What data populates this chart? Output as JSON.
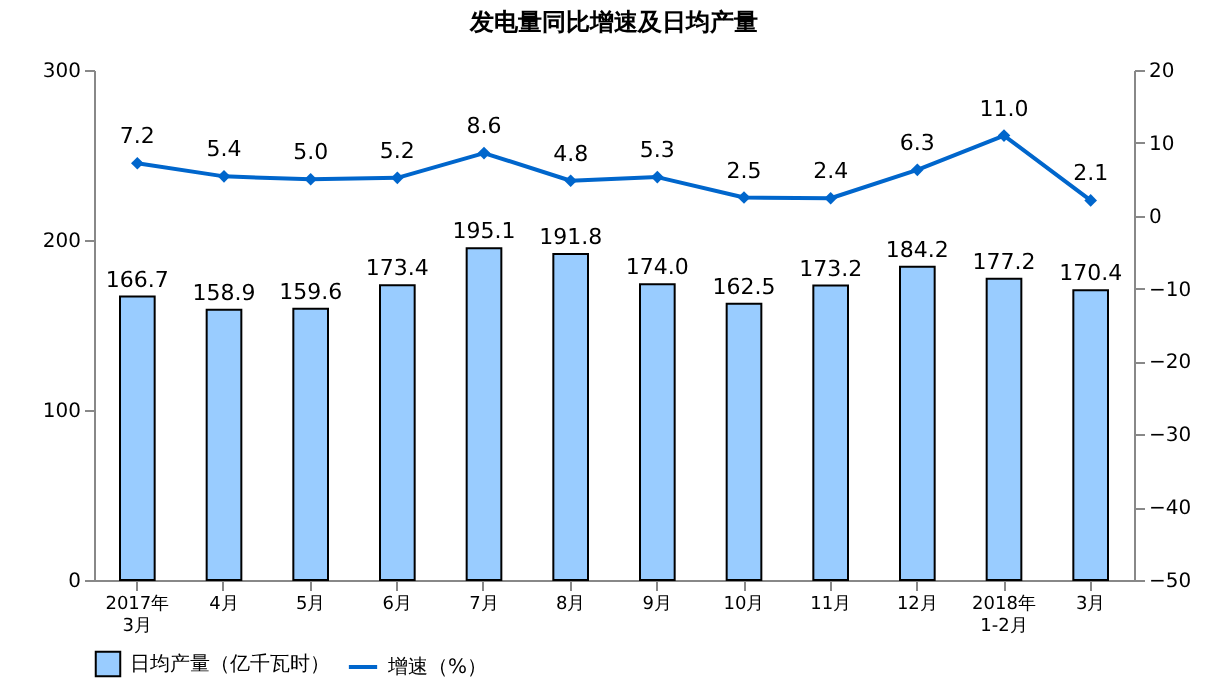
{
  "chart_data": {
    "type": "bar",
    "title": "发电量同比增速及日均产量",
    "categories": [
      "2017年\n3月",
      "4月",
      "5月",
      "6月",
      "7月",
      "8月",
      "9月",
      "10月",
      "11月",
      "12月",
      "2018年\n1-2月",
      "3月"
    ],
    "series": [
      {
        "name": "日均产量（亿千瓦时）",
        "color": "#99ccff",
        "values": [
          166.7,
          158.9,
          159.6,
          173.4,
          195.1,
          191.8,
          174.0,
          162.5,
          173.2,
          184.2,
          177.2,
          170.4
        ],
        "value_labels": [
          "166.7",
          "158.9",
          "159.6",
          "173.4",
          "195.1",
          "191.8",
          "174.0",
          "162.5",
          "173.2",
          "184.2",
          "177.2",
          "170.4"
        ]
      },
      {
        "name": "增速（%）",
        "type": "line",
        "axis": "y2",
        "color": "#0066cc",
        "marker": "diamond",
        "values": [
          7.2,
          5.4,
          5.0,
          5.2,
          8.6,
          4.8,
          5.3,
          2.5,
          2.4,
          6.3,
          11.0,
          2.1
        ],
        "value_labels": [
          "7.2",
          "5.4",
          "5.0",
          "5.2",
          "8.6",
          "4.8",
          "5.3",
          "2.5",
          "2.4",
          "6.3",
          "11.0",
          "2.1"
        ]
      }
    ],
    "ylim": [
      0,
      300
    ],
    "yticks": [
      0,
      100,
      200,
      300
    ],
    "y2lim": [
      -50,
      20
    ],
    "y2ticks": [
      -50,
      -40,
      -30,
      -20,
      -10,
      0,
      10,
      20
    ],
    "legend": "bottom"
  }
}
